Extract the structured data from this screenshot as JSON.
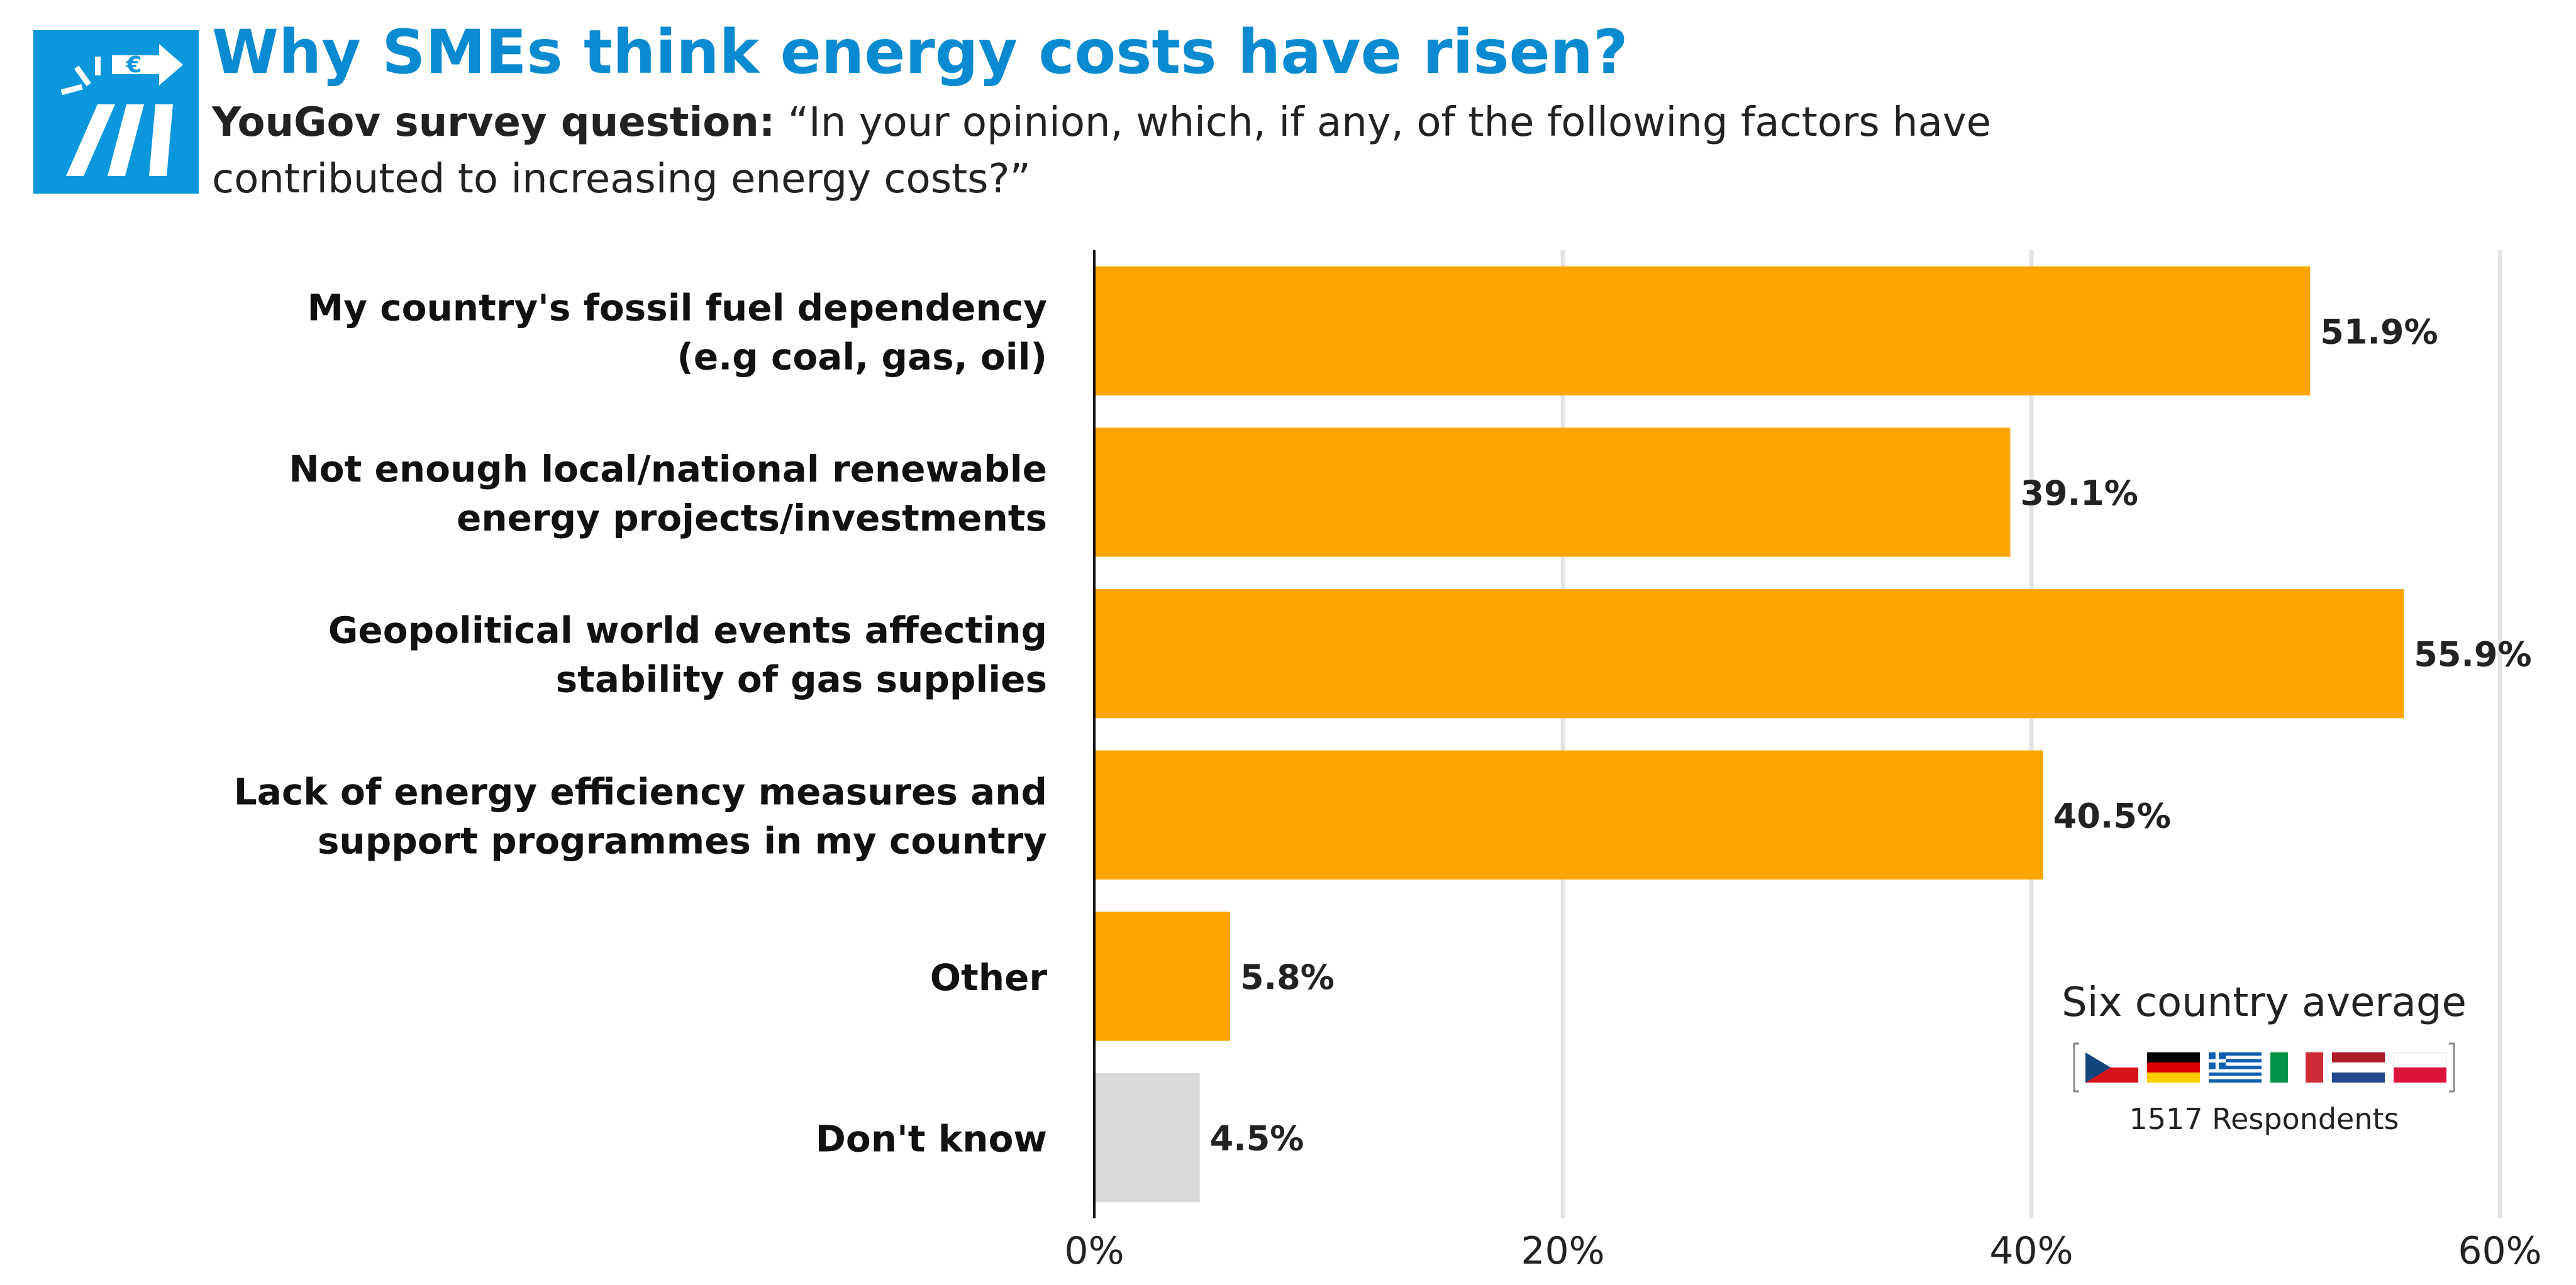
{
  "header": {
    "title": "Why SMEs think energy costs have risen?",
    "subtitle_lead": "YouGov survey question:",
    "subtitle_text": " “In your opinion, which, if any, of the following factors have contributed to increasing energy costs?”"
  },
  "colors": {
    "title": "#0a8bd1",
    "logo": "#0a97de",
    "bar": "#ffa500",
    "bar_muted": "#d9d9d9",
    "grid": "#e3e3e3"
  },
  "chart_data": {
    "type": "bar",
    "orientation": "horizontal",
    "categories": [
      [
        "My country's fossil fuel dependency",
        "(e.g coal, gas, oil)"
      ],
      [
        "Not enough local/national renewable",
        "energy projects/investments"
      ],
      [
        "Geopolitical world events affecting",
        "stability of gas supplies"
      ],
      [
        "Lack of energy efficiency measures and",
        "support programmes in my country"
      ],
      [
        "Other"
      ],
      [
        "Don't know"
      ]
    ],
    "values": [
      51.9,
      39.1,
      55.9,
      40.5,
      5.8,
      4.5
    ],
    "value_labels": [
      "51.9%",
      "39.1%",
      "55.9%",
      "40.5%",
      "5.8%",
      "4.5%"
    ],
    "bar_colors": [
      "#ffa500",
      "#ffa500",
      "#ffa500",
      "#ffa500",
      "#ffa500",
      "#d9d9d9"
    ],
    "xlim": [
      0,
      60
    ],
    "xticks": [
      0,
      20,
      40,
      60
    ],
    "xtick_labels": [
      "0%",
      "20%",
      "40%",
      "60%"
    ],
    "grid": true,
    "legend_position": "bottom-right"
  },
  "legend": {
    "title": "Six country average",
    "respondents": "1517 Respondents",
    "flags": [
      "czech-republic-flag",
      "germany-flag",
      "greece-flag",
      "italy-flag",
      "netherlands-flag",
      "poland-flag"
    ]
  }
}
